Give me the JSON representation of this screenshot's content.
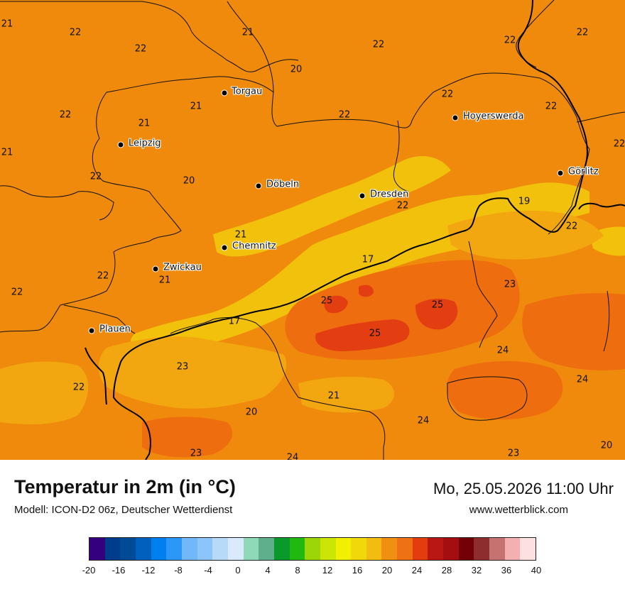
{
  "title": "Temperatur in 2m (in °C)",
  "model": "Modell: ICON-D2 06z, Deutscher Wetterdienst",
  "datetime": "Mo, 25.05.2026 11:00 Uhr",
  "website": "www.wetterblick.com",
  "colors": {
    "t17": "#f1c10c",
    "t19": "#f2a710",
    "t21": "#f08a0c",
    "t23": "#ee6d0e",
    "t25": "#e33d12"
  },
  "cities": [
    {
      "name": "Torgau"
    },
    {
      "name": "Hoyerswerda"
    },
    {
      "name": "Leipzig"
    },
    {
      "name": "Görlitz"
    },
    {
      "name": "Döbeln"
    },
    {
      "name": "Dresden"
    },
    {
      "name": "Chemnitz"
    },
    {
      "name": "Zwickau"
    },
    {
      "name": "Plauen"
    }
  ],
  "values": [
    "21",
    "22",
    "22",
    "21",
    "22",
    "22",
    "20",
    "22",
    "22",
    "22",
    "21",
    "21",
    "22",
    "22",
    "21",
    "22",
    "20",
    "22",
    "19",
    "22",
    "21",
    "22",
    "17",
    "23",
    "21",
    "22",
    "25",
    "25",
    "17",
    "25",
    "24",
    "23",
    "24",
    "22",
    "21",
    "20",
    "24",
    "23",
    "20",
    "24"
  ],
  "legend": {
    "colors": [
      "#350080",
      "#003c8c",
      "#004a96",
      "#0060bd",
      "#0080ee",
      "#2b98f8",
      "#72b7f7",
      "#8cc5f9",
      "#b7daf9",
      "#d8eafb",
      "#8fd8b8",
      "#5fae8c",
      "#0a9a2c",
      "#21b80f",
      "#9cd608",
      "#cbe604",
      "#f0f000",
      "#f0d80a",
      "#f0bd10",
      "#f09010",
      "#ee7213",
      "#e23c0f",
      "#b81714",
      "#a40e10",
      "#730006",
      "#8d2d2d",
      "#c47272",
      "#f4b0b0",
      "#fde0e0"
    ],
    "ticks": [
      "-20",
      "-16",
      "-12",
      "-8",
      "-4",
      "0",
      "4",
      "8",
      "12",
      "16",
      "20",
      "24",
      "28",
      "32",
      "36",
      "40"
    ]
  }
}
